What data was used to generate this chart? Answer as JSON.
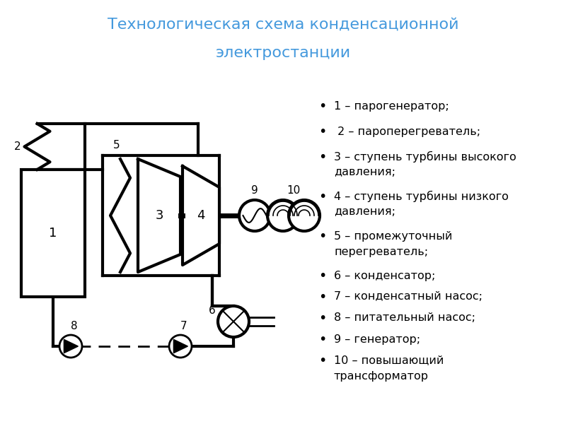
{
  "title_line1": "Технологическая схема конденсационной",
  "title_line2": "электростанции",
  "title_color": "#4499dd",
  "title_fontsize": 16,
  "bg_color": "#ffffff",
  "legend_items": [
    [
      "1",
      "– парогенератор;"
    ],
    [
      "2",
      "– пароперегреватель;"
    ],
    [
      "3",
      "– ступень турбины высокого\nдавления;"
    ],
    [
      "4",
      "– ступень турбины низкого\nдавления;"
    ],
    [
      "5",
      "– промежуточный\nперегреватель;"
    ],
    [
      "6",
      "– конденсатор;"
    ],
    [
      "7",
      "– конденсатный насос;"
    ],
    [
      "8",
      "– питательный насос;"
    ],
    [
      "9",
      "– генератор;"
    ],
    [
      "10",
      "– повышающий\nтрансформатор"
    ]
  ],
  "lw": 2.0
}
